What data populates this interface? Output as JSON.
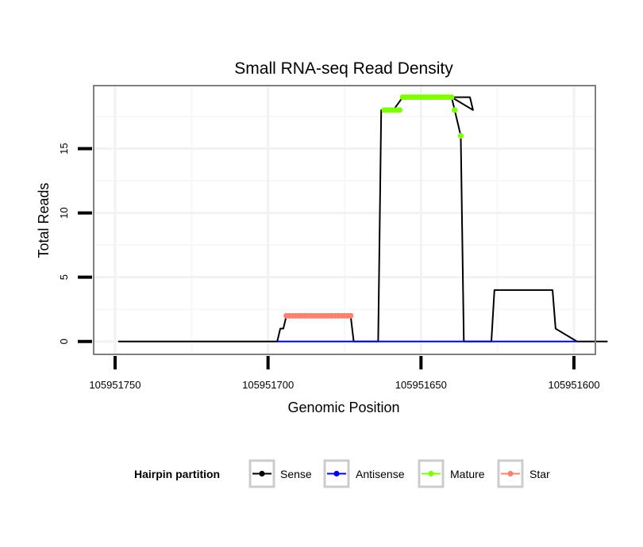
{
  "chart_data": {
    "type": "line",
    "title": "Small RNA-seq Read Density",
    "xlabel": "Genomic Position",
    "ylabel": "Total Reads",
    "xlim": [
      105951757,
      105951593
    ],
    "ylim": [
      -1,
      19.9
    ],
    "x_reversed": true,
    "x_ticks": [
      105951750,
      105951700,
      105951650,
      105951600
    ],
    "x_tick_labels": [
      "105951750",
      "105951700",
      "105951650",
      "105951600"
    ],
    "y_ticks": [
      0,
      5,
      10,
      15
    ],
    "y_tick_labels": [
      "0",
      "5",
      "10",
      "15"
    ],
    "grid": true,
    "legend_position": "bottom",
    "legend": {
      "title": "Hairpin partition",
      "entries": [
        "Sense",
        "Antisense",
        "Mature",
        "Star"
      ]
    },
    "colors": {
      "Sense": "#000000",
      "Antisense": "#0000ff",
      "Mature": "#7fff00",
      "Star": "#fa8072"
    },
    "series": [
      {
        "name": "Sense",
        "kind": "line",
        "x": [
          105951749,
          105951697,
          105951696,
          105951695,
          105951694,
          105951673,
          105951672,
          105951664,
          105951663,
          105951662,
          105951659,
          105951656,
          105951655,
          105951634,
          105951633,
          105951640,
          105951639,
          105951637,
          105951636,
          105951627,
          105951626,
          105951607,
          105951606,
          105951599,
          105951598,
          105951589
        ],
        "y": [
          0,
          0,
          1,
          1,
          2,
          2,
          0,
          0,
          18,
          18,
          18,
          19,
          19,
          19,
          18,
          19,
          18,
          16,
          0,
          0,
          4,
          4,
          1,
          0,
          0,
          0
        ]
      },
      {
        "name": "Antisense",
        "kind": "line",
        "x": [
          105951697,
          105951599
        ],
        "y": [
          0,
          0
        ]
      },
      {
        "name": "Mature",
        "kind": "points",
        "x": [
          105951662,
          105951661,
          105951660,
          105951659,
          105951658,
          105951657,
          105951656,
          105951655,
          105951654,
          105951653,
          105951652,
          105951651,
          105951650,
          105951649,
          105951648,
          105951647,
          105951646,
          105951645,
          105951644,
          105951643,
          105951642,
          105951641,
          105951640,
          105951639,
          105951637
        ],
        "y": [
          18,
          18,
          18,
          18,
          18,
          18,
          19,
          19,
          19,
          19,
          19,
          19,
          19,
          19,
          19,
          19,
          19,
          19,
          19,
          19,
          19,
          19,
          19,
          18,
          16
        ]
      },
      {
        "name": "Star",
        "kind": "points",
        "x": [
          105951694,
          105951693,
          105951692,
          105951691,
          105951690,
          105951689,
          105951688,
          105951687,
          105951686,
          105951685,
          105951684,
          105951683,
          105951682,
          105951681,
          105951680,
          105951679,
          105951678,
          105951677,
          105951676,
          105951675,
          105951674,
          105951673
        ],
        "y": [
          2,
          2,
          2,
          2,
          2,
          2,
          2,
          2,
          2,
          2,
          2,
          2,
          2,
          2,
          2,
          2,
          2,
          2,
          2,
          2,
          2,
          2
        ]
      }
    ]
  }
}
